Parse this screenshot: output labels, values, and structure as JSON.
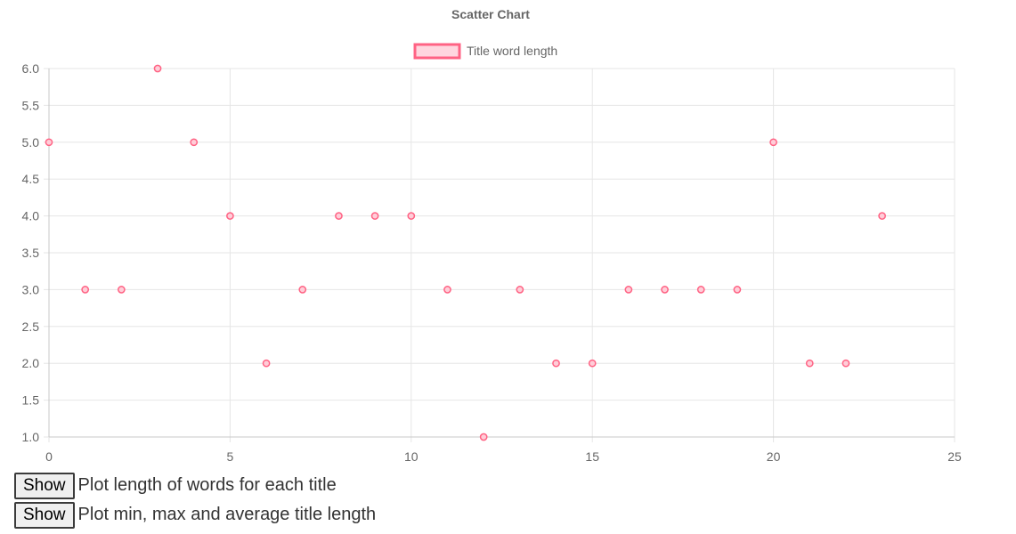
{
  "chart_data": {
    "type": "scatter",
    "title": "Scatter Chart",
    "series": [
      {
        "name": "Title word length",
        "x": [
          0,
          1,
          2,
          3,
          4,
          5,
          6,
          7,
          8,
          9,
          10,
          11,
          12,
          13,
          14,
          15,
          16,
          17,
          18,
          19,
          20,
          21,
          22,
          23
        ],
        "y": [
          5,
          3,
          3,
          6,
          5,
          4,
          2,
          3,
          4,
          4,
          4,
          3,
          1,
          3,
          2,
          2,
          3,
          3,
          3,
          3,
          5,
          2,
          2,
          4
        ],
        "border_color": "#ff6384",
        "fill_color": "#ffcdd8"
      }
    ],
    "xlim": [
      0,
      25
    ],
    "ylim": [
      1,
      6
    ],
    "x_ticks": [
      "0",
      "5",
      "10",
      "15",
      "20",
      "25"
    ],
    "y_ticks": [
      "1.0",
      "1.5",
      "2.0",
      "2.5",
      "3.0",
      "3.5",
      "4.0",
      "4.5",
      "5.0",
      "5.5",
      "6.0"
    ],
    "grid": true,
    "legend_position": "top"
  },
  "controls": [
    {
      "button_label": "Show",
      "text": "Plot length of words for each title"
    },
    {
      "button_label": "Show",
      "text": "Plot min, max and average title length"
    }
  ]
}
